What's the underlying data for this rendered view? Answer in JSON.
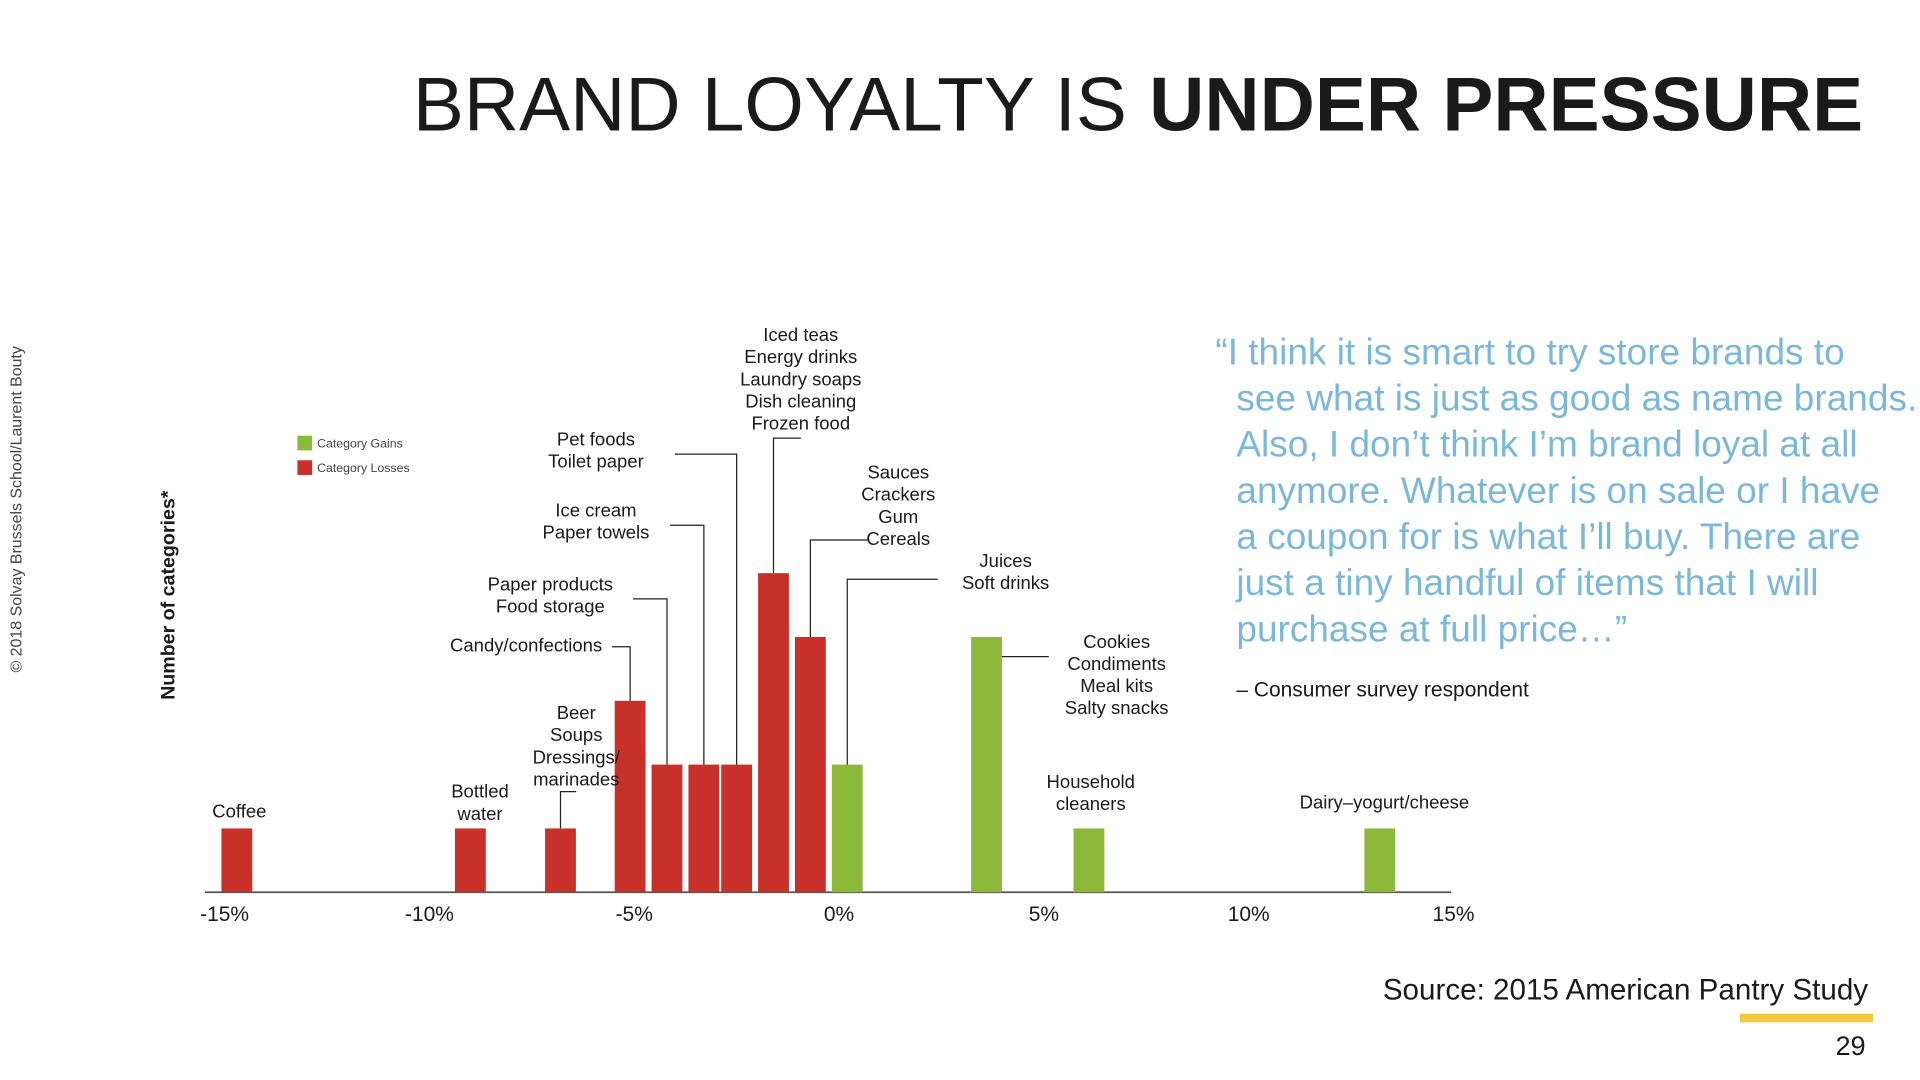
{
  "slide": {
    "title_light": "BRAND LOYALTY IS",
    "title_bold": "UNDER PRESSURE",
    "copyright": "© 2018 Solvay Brussels School/Laurent Bouty",
    "quote": [
      "“I think it is smart to try store brands to",
      "see what is just as good as name brands.",
      "Also, I don’t think I’m brand loyal at all",
      "anymore. Whatever is on sale or I have",
      "a coupon for is what I’ll buy. There are",
      "just a tiny handful of items that I will",
      "purchase at full price…”"
    ],
    "attribution": "– Consumer survey respondent",
    "source": "Source: 2015 American Pantry Study",
    "page_number": "29"
  },
  "chart_data": {
    "type": "bar",
    "ylabel": "Number of categories*",
    "xlim": [
      -15,
      15
    ],
    "ylim": [
      0,
      5
    ],
    "xticks": [
      {
        "value": -15,
        "label": "-15%"
      },
      {
        "value": -10,
        "label": "-10%"
      },
      {
        "value": -5,
        "label": "-5%"
      },
      {
        "value": 0,
        "label": "0%"
      },
      {
        "value": 5,
        "label": "5%"
      },
      {
        "value": 10,
        "label": "10%"
      },
      {
        "value": 15,
        "label": "15%"
      }
    ],
    "series": [
      {
        "name": "Category Gains",
        "color": "#8db93a",
        "x": [
          0.2,
          3.6,
          6.1,
          13.2
        ],
        "values": [
          2,
          4,
          1,
          1
        ]
      },
      {
        "name": "Category Losses",
        "color": "#c8312a",
        "x": [
          -14.7,
          -9,
          -6.8,
          -5.1,
          -4.2,
          -3.3,
          -2.5,
          -1.6,
          -0.7
        ],
        "values": [
          1,
          1,
          1,
          3,
          2,
          2,
          2,
          5,
          4
        ]
      }
    ],
    "annotations": [
      [
        "Coffee"
      ],
      [
        "Bottled",
        "water"
      ],
      [
        "Beer",
        "Soups",
        "Dressings/",
        "marinades"
      ],
      [
        "Candy/confections"
      ],
      [
        "Paper products",
        "Food storage"
      ],
      [
        "Ice cream",
        "Paper towels"
      ],
      [
        "Pet foods",
        "Toilet paper"
      ],
      [
        "Iced teas",
        "Energy drinks",
        "Laundry soaps",
        "Dish cleaning",
        "Frozen food"
      ],
      [
        "Sauces",
        "Crackers",
        "Gum",
        "Cereals"
      ],
      [
        "Juices",
        "Soft drinks"
      ],
      [
        "Cookies",
        "Condiments",
        "Meal kits",
        "Salty snacks"
      ],
      [
        "Household",
        "cleaners"
      ],
      [
        "Dairy–yogurt/cheese"
      ]
    ]
  }
}
